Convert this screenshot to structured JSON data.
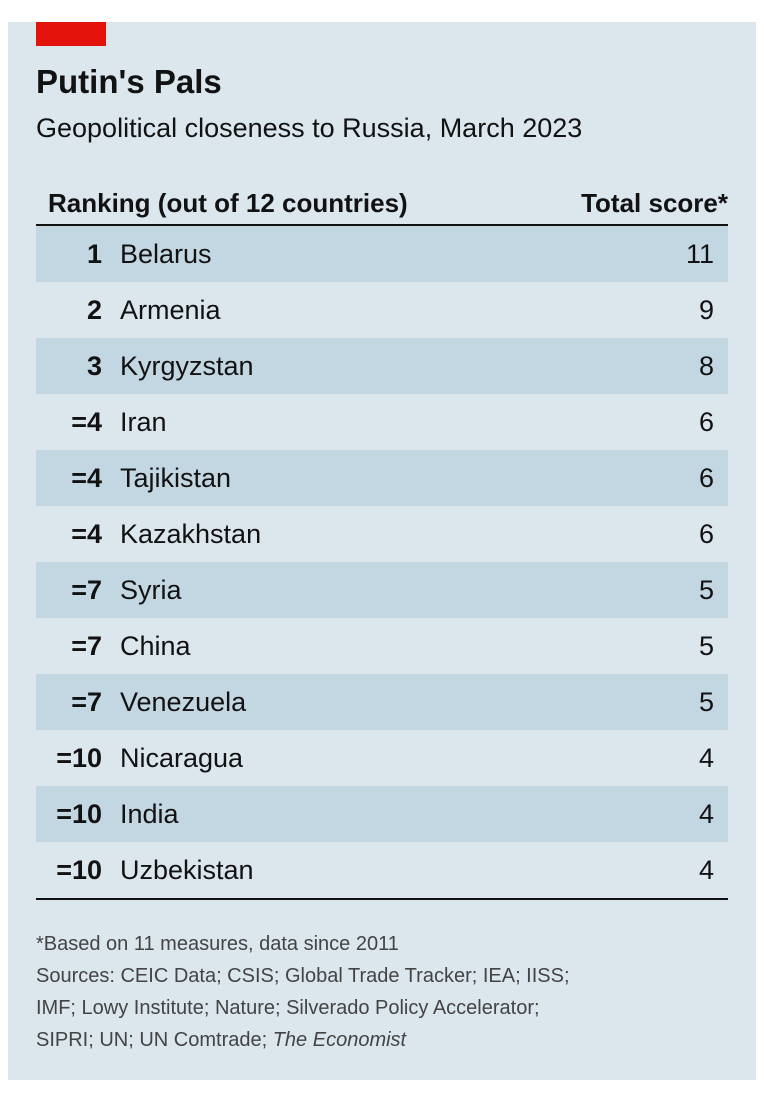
{
  "accent_color": "#e3120b",
  "title": "Putin's Pals",
  "subtitle": "Geopolitical closeness to Russia, March 2023",
  "header": {
    "left": "Ranking (out of 12 countries)",
    "right": "Total score*"
  },
  "chart_data": {
    "type": "table",
    "columns": [
      "Ranking",
      "Country",
      "Total score*"
    ],
    "rows": [
      {
        "rank": "1",
        "country": "Belarus",
        "score": "11"
      },
      {
        "rank": "2",
        "country": "Armenia",
        "score": "9"
      },
      {
        "rank": "3",
        "country": "Kyrgyzstan",
        "score": "8"
      },
      {
        "rank": "=4",
        "country": "Iran",
        "score": "6"
      },
      {
        "rank": "=4",
        "country": "Tajikistan",
        "score": "6"
      },
      {
        "rank": "=4",
        "country": "Kazakhstan",
        "score": "6"
      },
      {
        "rank": "=7",
        "country": "Syria",
        "score": "5"
      },
      {
        "rank": "=7",
        "country": "China",
        "score": "5"
      },
      {
        "rank": "=7",
        "country": "Venezuela",
        "score": "5"
      },
      {
        "rank": "=10",
        "country": "Nicaragua",
        "score": "4"
      },
      {
        "rank": "=10",
        "country": "India",
        "score": "4"
      },
      {
        "rank": "=10",
        "country": "Uzbekistan",
        "score": "4"
      }
    ]
  },
  "footnote": {
    "note": "*Based on 11 measures, data since 2011",
    "sources_line1": "Sources: CEIC Data; CSIS; Global Trade Tracker; IEA; IISS;",
    "sources_line2": "IMF; Lowy Institute; Nature; Silverado Policy Accelerator;",
    "sources_line3_prefix": "SIPRI; UN; UN Comtrade; ",
    "sources_line3_italic": "The Economist"
  }
}
